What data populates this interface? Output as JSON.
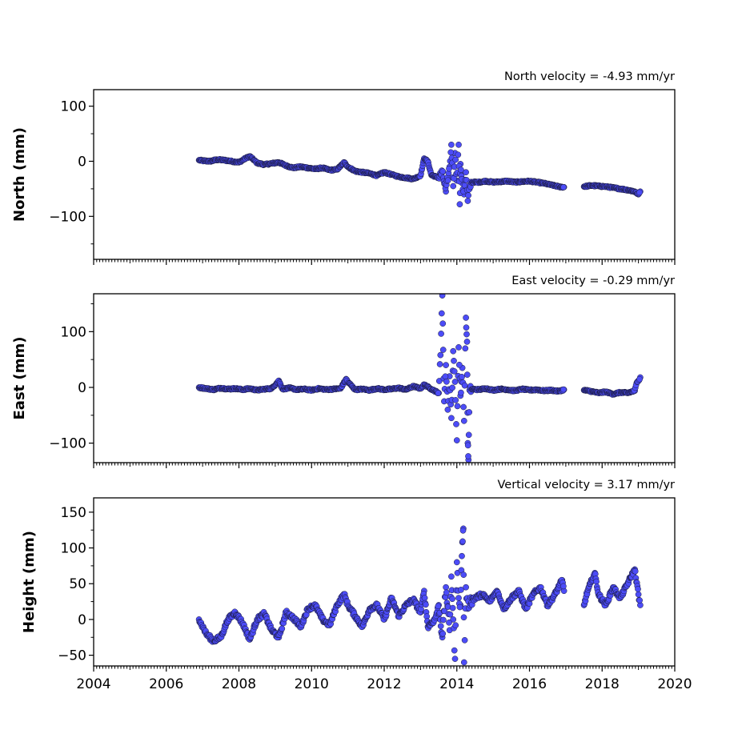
{
  "chart_data": [
    {
      "type": "scatter",
      "id": "north",
      "ylabel": "North (mm)",
      "velocity_label": "North velocity = -4.93 mm/yr",
      "xlim": [
        2004,
        2020
      ],
      "ylim": [
        -178,
        130
      ],
      "yticks": [
        100,
        0,
        -100
      ],
      "ytick_labels": [
        "100",
        "0",
        "−100"
      ],
      "color": "#4c4cf7",
      "points": [
        [
          2006.9,
          2
        ],
        [
          2007.0,
          1
        ],
        [
          2007.2,
          0
        ],
        [
          2007.4,
          3
        ],
        [
          2007.6,
          2
        ],
        [
          2007.8,
          0
        ],
        [
          2008.0,
          -2
        ],
        [
          2008.2,
          6
        ],
        [
          2008.3,
          9
        ],
        [
          2008.5,
          -3
        ],
        [
          2008.7,
          -6
        ],
        [
          2008.9,
          -4
        ],
        [
          2009.1,
          -2
        ],
        [
          2009.3,
          -8
        ],
        [
          2009.5,
          -12
        ],
        [
          2009.7,
          -10
        ],
        [
          2009.9,
          -12
        ],
        [
          2010.1,
          -14
        ],
        [
          2010.3,
          -12
        ],
        [
          2010.5,
          -16
        ],
        [
          2010.7,
          -15
        ],
        [
          2010.9,
          -2
        ],
        [
          2011.0,
          -10
        ],
        [
          2011.2,
          -18
        ],
        [
          2011.4,
          -20
        ],
        [
          2011.6,
          -22
        ],
        [
          2011.8,
          -26
        ],
        [
          2012.0,
          -20
        ],
        [
          2012.2,
          -24
        ],
        [
          2012.4,
          -28
        ],
        [
          2012.6,
          -30
        ],
        [
          2012.8,
          -32
        ],
        [
          2013.0,
          -26
        ],
        [
          2013.1,
          5
        ],
        [
          2013.2,
          0
        ],
        [
          2013.3,
          -25
        ],
        [
          2013.5,
          -30
        ],
        [
          2013.6,
          -20
        ],
        [
          2013.7,
          -55
        ],
        [
          2013.8,
          -10
        ],
        [
          2013.85,
          30
        ],
        [
          2013.9,
          -45
        ],
        [
          2013.95,
          15
        ],
        [
          2014.0,
          -35
        ],
        [
          2014.05,
          30
        ],
        [
          2014.08,
          -78
        ],
        [
          2014.1,
          -5
        ],
        [
          2014.15,
          -40
        ],
        [
          2014.2,
          -60
        ],
        [
          2014.25,
          -20
        ],
        [
          2014.3,
          -72
        ],
        [
          2014.35,
          -50
        ],
        [
          2014.4,
          -38
        ],
        [
          2014.6,
          -38
        ],
        [
          2014.8,
          -36
        ],
        [
          2015.0,
          -38
        ],
        [
          2015.2,
          -37
        ],
        [
          2015.4,
          -36
        ],
        [
          2015.6,
          -38
        ],
        [
          2015.8,
          -37
        ],
        [
          2016.0,
          -36
        ],
        [
          2016.2,
          -38
        ],
        [
          2016.4,
          -40
        ],
        [
          2016.6,
          -43
        ],
        [
          2016.8,
          -46
        ],
        [
          2016.95,
          -47
        ],
        [
          2017.5,
          -46
        ],
        [
          2017.7,
          -44
        ],
        [
          2017.9,
          -45
        ],
        [
          2018.1,
          -46
        ],
        [
          2018.3,
          -48
        ],
        [
          2018.5,
          -50
        ],
        [
          2018.7,
          -52
        ],
        [
          2018.9,
          -55
        ],
        [
          2019.0,
          -60
        ],
        [
          2019.05,
          -55
        ]
      ]
    },
    {
      "type": "scatter",
      "id": "east",
      "ylabel": "East (mm)",
      "velocity_label": "East velocity = -0.29 mm/yr",
      "xlim": [
        2004,
        2020
      ],
      "ylim": [
        -135,
        168
      ],
      "yticks": [
        100,
        0,
        -100
      ],
      "ytick_labels": [
        "100",
        "0",
        "−100"
      ],
      "color": "#4c4cf7",
      "points": [
        [
          2006.9,
          0
        ],
        [
          2007.1,
          -2
        ],
        [
          2007.3,
          -4
        ],
        [
          2007.5,
          -1
        ],
        [
          2007.7,
          -3
        ],
        [
          2007.9,
          -2
        ],
        [
          2008.1,
          -4
        ],
        [
          2008.3,
          -2
        ],
        [
          2008.5,
          -5
        ],
        [
          2008.7,
          -3
        ],
        [
          2008.9,
          -2
        ],
        [
          2009.1,
          12
        ],
        [
          2009.2,
          -3
        ],
        [
          2009.4,
          -1
        ],
        [
          2009.6,
          -4
        ],
        [
          2009.8,
          -3
        ],
        [
          2010.0,
          -5
        ],
        [
          2010.2,
          -2
        ],
        [
          2010.4,
          -4
        ],
        [
          2010.6,
          -3
        ],
        [
          2010.8,
          -2
        ],
        [
          2010.95,
          15
        ],
        [
          2011.0,
          10
        ],
        [
          2011.2,
          -4
        ],
        [
          2011.4,
          -3
        ],
        [
          2011.6,
          -5
        ],
        [
          2011.8,
          -2
        ],
        [
          2012.0,
          -4
        ],
        [
          2012.2,
          -3
        ],
        [
          2012.4,
          -1
        ],
        [
          2012.6,
          -4
        ],
        [
          2012.8,
          2
        ],
        [
          2013.0,
          -2
        ],
        [
          2013.1,
          5
        ],
        [
          2013.3,
          -3
        ],
        [
          2013.5,
          -10
        ],
        [
          2013.55,
          58
        ],
        [
          2013.6,
          165
        ],
        [
          2013.65,
          -25
        ],
        [
          2013.7,
          40
        ],
        [
          2013.75,
          -40
        ],
        [
          2013.8,
          20
        ],
        [
          2013.85,
          -55
        ],
        [
          2013.9,
          65
        ],
        [
          2013.95,
          10
        ],
        [
          2014.0,
          -95
        ],
        [
          2014.05,
          72
        ],
        [
          2014.1,
          -15
        ],
        [
          2014.15,
          35
        ],
        [
          2014.2,
          -60
        ],
        [
          2014.25,
          125
        ],
        [
          2014.28,
          82
        ],
        [
          2014.3,
          -100
        ],
        [
          2014.32,
          -130
        ],
        [
          2014.35,
          -5
        ],
        [
          2014.4,
          -3
        ],
        [
          2014.6,
          -4
        ],
        [
          2014.8,
          -2
        ],
        [
          2015.0,
          -5
        ],
        [
          2015.2,
          -3
        ],
        [
          2015.4,
          -4
        ],
        [
          2015.6,
          -6
        ],
        [
          2015.8,
          -3
        ],
        [
          2016.0,
          -5
        ],
        [
          2016.2,
          -4
        ],
        [
          2016.4,
          -6
        ],
        [
          2016.6,
          -5
        ],
        [
          2016.8,
          -7
        ],
        [
          2016.95,
          -4
        ],
        [
          2017.5,
          -5
        ],
        [
          2017.7,
          -7
        ],
        [
          2017.9,
          -10
        ],
        [
          2018.1,
          -8
        ],
        [
          2018.3,
          -12
        ],
        [
          2018.5,
          -9
        ],
        [
          2018.7,
          -10
        ],
        [
          2018.9,
          -6
        ],
        [
          2018.95,
          8
        ],
        [
          2019.0,
          12
        ],
        [
          2019.05,
          18
        ]
      ]
    },
    {
      "type": "scatter",
      "id": "height",
      "ylabel": "Height (mm)",
      "velocity_label": "Vertical velocity = 3.17 mm/yr",
      "xlim": [
        2004,
        2020
      ],
      "ylim": [
        -65,
        170
      ],
      "yticks": [
        150,
        100,
        50,
        0,
        -50
      ],
      "ytick_labels": [
        "150",
        "100",
        "50",
        "0",
        "−50"
      ],
      "xticks": [
        2004,
        2006,
        2008,
        2010,
        2012,
        2014,
        2016,
        2018,
        2020
      ],
      "xtick_labels": [
        "2004",
        "2006",
        "2008",
        "2010",
        "2012",
        "2014",
        "2016",
        "2018",
        "2020"
      ],
      "color": "#4c4cf7",
      "points": [
        [
          2006.9,
          0
        ],
        [
          2007.0,
          -10
        ],
        [
          2007.1,
          -20
        ],
        [
          2007.3,
          -30
        ],
        [
          2007.5,
          -25
        ],
        [
          2007.7,
          0
        ],
        [
          2007.9,
          10
        ],
        [
          2008.1,
          -5
        ],
        [
          2008.3,
          -28
        ],
        [
          2008.5,
          0
        ],
        [
          2008.7,
          8
        ],
        [
          2008.9,
          -15
        ],
        [
          2009.1,
          -25
        ],
        [
          2009.3,
          10
        ],
        [
          2009.5,
          2
        ],
        [
          2009.7,
          -10
        ],
        [
          2009.9,
          15
        ],
        [
          2010.1,
          20
        ],
        [
          2010.3,
          0
        ],
        [
          2010.5,
          -8
        ],
        [
          2010.7,
          20
        ],
        [
          2010.9,
          35
        ],
        [
          2011.0,
          20
        ],
        [
          2011.2,
          5
        ],
        [
          2011.4,
          -10
        ],
        [
          2011.6,
          15
        ],
        [
          2011.8,
          20
        ],
        [
          2012.0,
          0
        ],
        [
          2012.2,
          30
        ],
        [
          2012.4,
          5
        ],
        [
          2012.6,
          20
        ],
        [
          2012.8,
          28
        ],
        [
          2013.0,
          10
        ],
        [
          2013.1,
          40
        ],
        [
          2013.2,
          -10
        ],
        [
          2013.4,
          0
        ],
        [
          2013.5,
          20
        ],
        [
          2013.6,
          -25
        ],
        [
          2013.7,
          45
        ],
        [
          2013.8,
          -15
        ],
        [
          2013.85,
          60
        ],
        [
          2013.9,
          0
        ],
        [
          2013.95,
          -55
        ],
        [
          2014.0,
          80
        ],
        [
          2014.05,
          30
        ],
        [
          2014.1,
          20
        ],
        [
          2014.15,
          108
        ],
        [
          2014.18,
          127
        ],
        [
          2014.2,
          -60
        ],
        [
          2014.25,
          45
        ],
        [
          2014.3,
          15
        ],
        [
          2014.35,
          25
        ],
        [
          2014.5,
          30
        ],
        [
          2014.7,
          35
        ],
        [
          2014.9,
          25
        ],
        [
          2015.1,
          40
        ],
        [
          2015.3,
          15
        ],
        [
          2015.5,
          30
        ],
        [
          2015.7,
          40
        ],
        [
          2015.9,
          15
        ],
        [
          2016.1,
          35
        ],
        [
          2016.3,
          45
        ],
        [
          2016.5,
          20
        ],
        [
          2016.7,
          35
        ],
        [
          2016.9,
          55
        ],
        [
          2016.95,
          40
        ],
        [
          2017.5,
          20
        ],
        [
          2017.6,
          40
        ],
        [
          2017.8,
          65
        ],
        [
          2017.9,
          35
        ],
        [
          2018.1,
          20
        ],
        [
          2018.3,
          45
        ],
        [
          2018.5,
          30
        ],
        [
          2018.7,
          50
        ],
        [
          2018.9,
          70
        ],
        [
          2019.0,
          35
        ],
        [
          2019.05,
          20
        ]
      ]
    }
  ]
}
